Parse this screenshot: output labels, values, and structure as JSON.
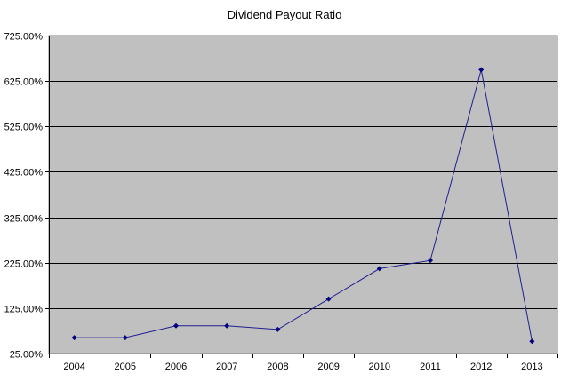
{
  "chart_data": {
    "type": "line",
    "title": "Dividend Payout Ratio",
    "xlabel": "",
    "ylabel": "",
    "categories": [
      "2004",
      "2005",
      "2006",
      "2007",
      "2008",
      "2009",
      "2010",
      "2011",
      "2012",
      "2013"
    ],
    "series": [
      {
        "values": [
          60.0,
          60.0,
          86.0,
          86.0,
          78.0,
          145.0,
          212.0,
          230.0,
          650.0,
          52.0
        ]
      }
    ],
    "ylim": [
      25,
      725
    ],
    "yticks": [
      "25.00%",
      "125.00%",
      "225.00%",
      "325.00%",
      "425.00%",
      "525.00%",
      "625.00%",
      "725.00%"
    ],
    "grid": true,
    "legend": "none",
    "colors": {
      "plot_background": "#C0C0C0",
      "line": "#1F1F8F",
      "marker": "#000080",
      "gridline": "#000000"
    }
  }
}
